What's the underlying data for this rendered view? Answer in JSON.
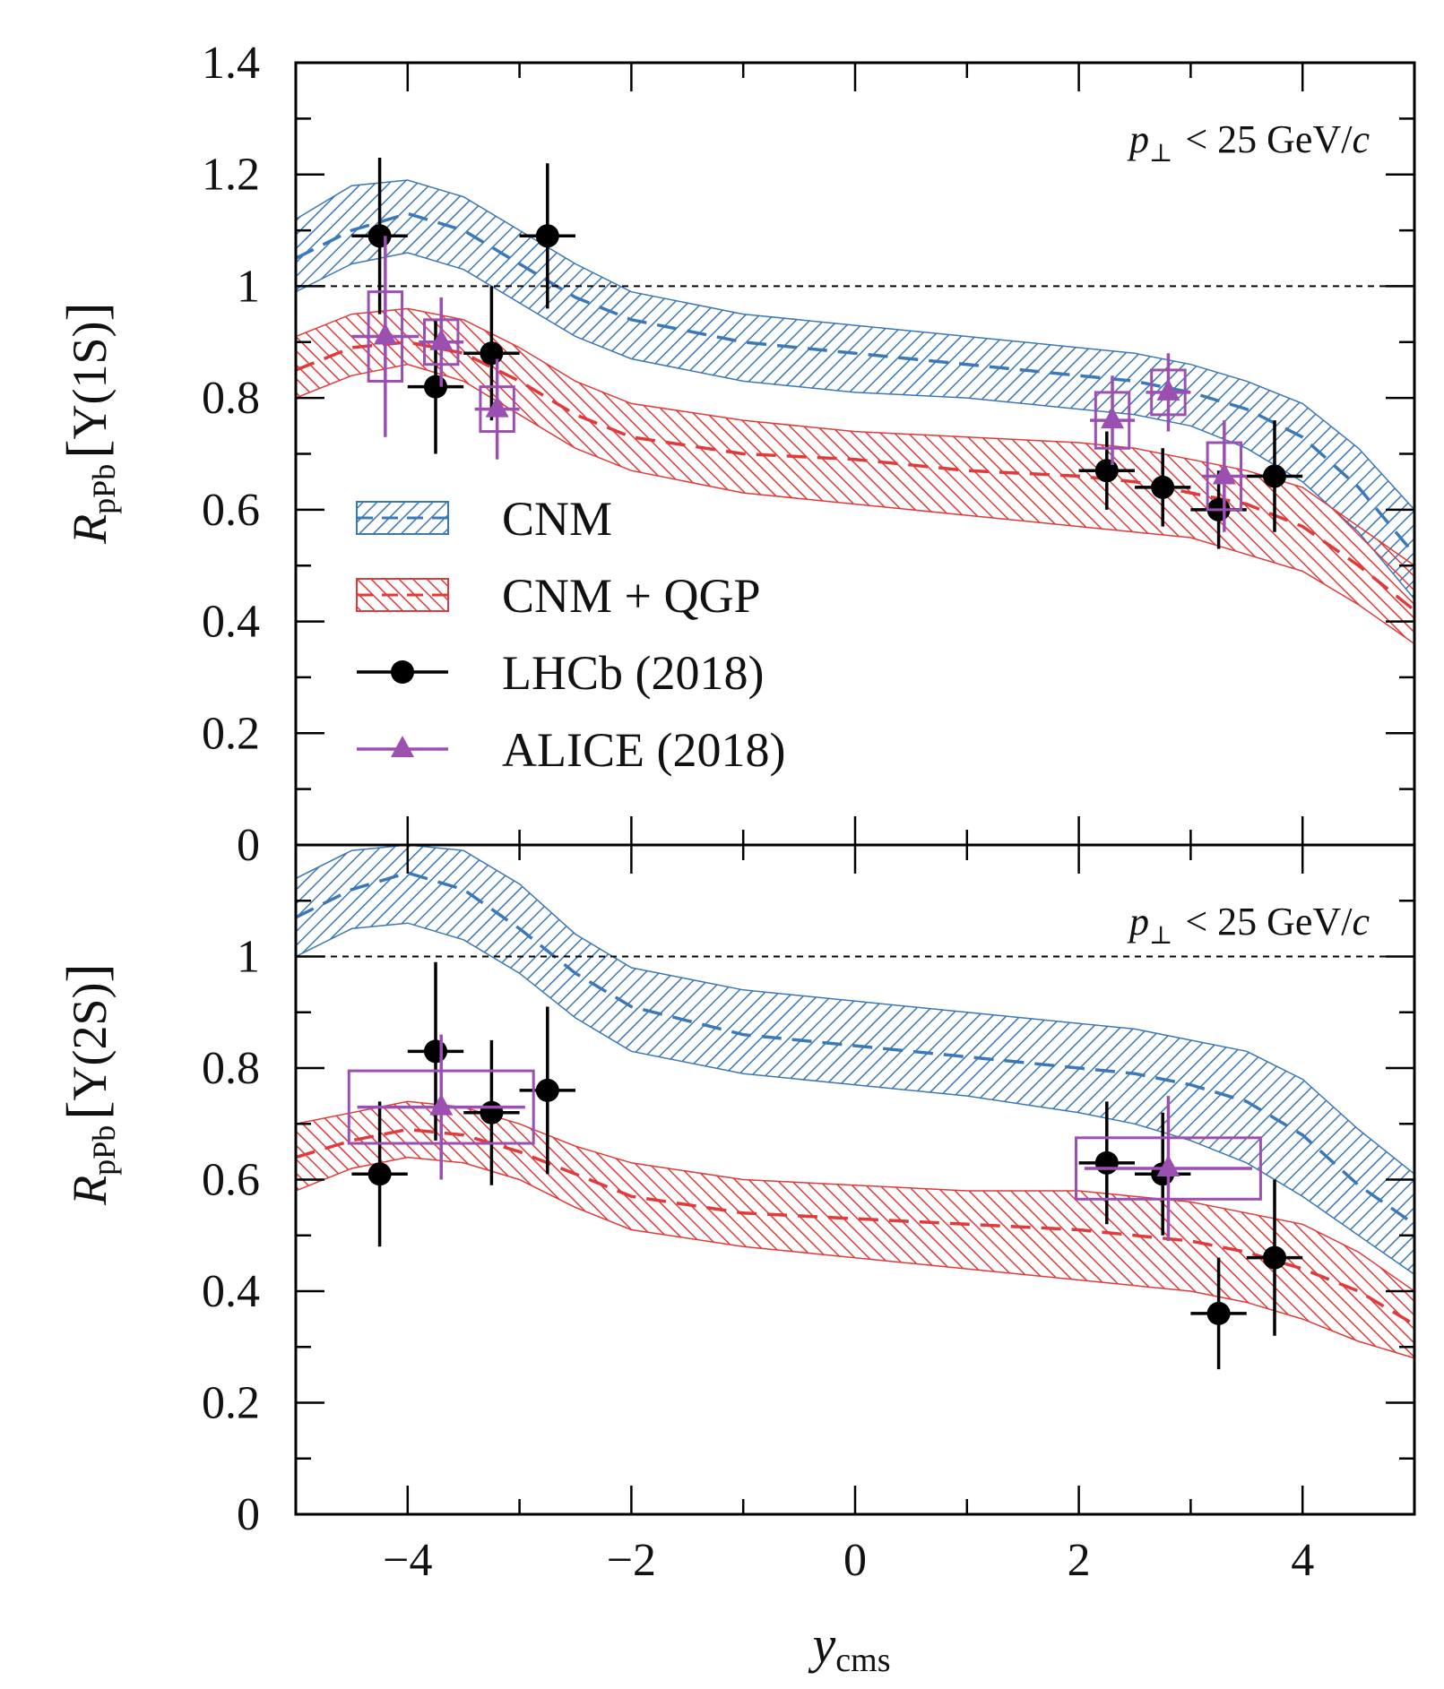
{
  "chart_data": [
    {
      "type": "line",
      "panel": "top",
      "ylabel_main": "R",
      "ylabel_sub": "pPb",
      "ylabel_state": "Υ(1S)",
      "annotation": {
        "p": "p",
        "perp": "⊥",
        "rest": "< 25 GeV/",
        "c": "c"
      },
      "xlim": [
        -5,
        5
      ],
      "ylim": [
        0,
        1.4
      ],
      "yticks": [
        0,
        0.2,
        0.4,
        0.6,
        0.8,
        1,
        1.2,
        1.4
      ],
      "ytick_labels": [
        "0",
        "0.2",
        "0.4",
        "0.6",
        "0.8",
        "1",
        "1.2",
        "1.4"
      ],
      "reference_line": 1,
      "series": [
        {
          "name": "CNM",
          "color": "#3a78b8",
          "x": [
            -5.0,
            -4.5,
            -4.0,
            -3.5,
            -3.0,
            -2.5,
            -2.0,
            -1.0,
            0.0,
            1.0,
            2.0,
            2.5,
            3.0,
            3.5,
            4.0,
            4.5,
            5.0
          ],
          "central": [
            1.05,
            1.1,
            1.13,
            1.1,
            1.04,
            0.98,
            0.94,
            0.9,
            0.88,
            0.86,
            0.84,
            0.83,
            0.81,
            0.78,
            0.73,
            0.64,
            0.52
          ],
          "lower": [
            0.99,
            1.04,
            1.06,
            1.03,
            0.97,
            0.91,
            0.87,
            0.83,
            0.81,
            0.8,
            0.78,
            0.77,
            0.75,
            0.71,
            0.65,
            0.56,
            0.44
          ],
          "upper": [
            1.12,
            1.18,
            1.19,
            1.16,
            1.1,
            1.04,
            0.99,
            0.95,
            0.93,
            0.91,
            0.89,
            0.88,
            0.86,
            0.83,
            0.79,
            0.71,
            0.6
          ]
        },
        {
          "name": "CNM + QGP",
          "color": "#e03a3a",
          "x": [
            -5.0,
            -4.5,
            -4.0,
            -3.5,
            -3.0,
            -2.5,
            -2.0,
            -1.0,
            0.0,
            1.0,
            2.0,
            2.5,
            3.0,
            3.5,
            4.0,
            4.5,
            5.0
          ],
          "central": [
            0.85,
            0.89,
            0.9,
            0.88,
            0.83,
            0.77,
            0.73,
            0.7,
            0.69,
            0.67,
            0.66,
            0.65,
            0.63,
            0.61,
            0.57,
            0.5,
            0.42
          ],
          "lower": [
            0.8,
            0.84,
            0.86,
            0.83,
            0.77,
            0.71,
            0.67,
            0.63,
            0.61,
            0.59,
            0.57,
            0.56,
            0.55,
            0.52,
            0.49,
            0.43,
            0.36
          ],
          "upper": [
            0.91,
            0.95,
            0.96,
            0.94,
            0.89,
            0.83,
            0.79,
            0.76,
            0.74,
            0.73,
            0.72,
            0.71,
            0.69,
            0.67,
            0.64,
            0.57,
            0.5
          ]
        }
      ],
      "points": [
        {
          "name": "LHCb (2018)",
          "color": "#000000",
          "marker": "circle",
          "x": [
            -4.25,
            -3.75,
            -3.25,
            -2.75,
            2.25,
            2.75,
            3.25,
            3.75
          ],
          "y": [
            1.09,
            0.82,
            0.88,
            1.09,
            0.67,
            0.64,
            0.6,
            0.66
          ],
          "xerr": [
            0.25,
            0.25,
            0.25,
            0.25,
            0.25,
            0.25,
            0.25,
            0.25
          ],
          "yerr": [
            0.14,
            0.12,
            0.12,
            0.13,
            0.07,
            0.07,
            0.07,
            0.1
          ]
        },
        {
          "name": "ALICE (2018)",
          "color": "#9b4fb0",
          "marker": "triangle",
          "x": [
            -4.2,
            -3.7,
            -3.2,
            2.3,
            2.8,
            3.3
          ],
          "y": [
            0.91,
            0.9,
            0.78,
            0.76,
            0.81,
            0.66
          ],
          "xerr": [
            0.3,
            0.2,
            0.2,
            0.2,
            0.2,
            0.2
          ],
          "yerr": [
            0.18,
            0.08,
            0.09,
            0.08,
            0.07,
            0.1
          ],
          "syst": [
            0.08,
            0.04,
            0.04,
            0.05,
            0.04,
            0.06
          ]
        }
      ],
      "legend": [
        {
          "label": "CNM",
          "kind": "band-hatch",
          "color": "#3a78b8",
          "dir": "right"
        },
        {
          "label": "CNM + QGP",
          "kind": "band-hatch",
          "color": "#e03a3a",
          "dir": "left"
        },
        {
          "label": "LHCb (2018)",
          "kind": "circle",
          "color": "#000000"
        },
        {
          "label": "ALICE (2018)",
          "kind": "triangle",
          "color": "#9b4fb0"
        }
      ],
      "legend_position": "left"
    },
    {
      "type": "line",
      "panel": "bottom",
      "ylabel_main": "R",
      "ylabel_sub": "pPb",
      "ylabel_state": "Υ(2S)",
      "xlabel_main": "y",
      "xlabel_sub": "cms",
      "annotation": {
        "p": "p",
        "perp": "⊥",
        "rest": "< 25 GeV/",
        "c": "c"
      },
      "xlim": [
        -5,
        5
      ],
      "ylim": [
        0,
        1.2
      ],
      "xticks": [
        -4,
        -2,
        0,
        2,
        4
      ],
      "xtick_labels": [
        "−4",
        "−2",
        "0",
        "2",
        "4"
      ],
      "yticks": [
        0,
        0.2,
        0.4,
        0.6,
        0.8,
        1
      ],
      "ytick_labels": [
        "0",
        "0.2",
        "0.4",
        "0.6",
        "0.8",
        "1"
      ],
      "reference_line": 1,
      "series": [
        {
          "name": "CNM",
          "color": "#3a78b8",
          "x": [
            -5.0,
            -4.5,
            -4.0,
            -3.5,
            -3.0,
            -2.5,
            -2.0,
            -1.0,
            0.0,
            1.0,
            2.0,
            2.5,
            3.0,
            3.5,
            4.0,
            4.5,
            5.0
          ],
          "central": [
            1.07,
            1.12,
            1.15,
            1.12,
            1.05,
            0.97,
            0.91,
            0.86,
            0.84,
            0.82,
            0.8,
            0.79,
            0.77,
            0.74,
            0.68,
            0.59,
            0.52
          ],
          "lower": [
            1.0,
            1.05,
            1.06,
            1.03,
            0.97,
            0.89,
            0.83,
            0.79,
            0.77,
            0.75,
            0.72,
            0.7,
            0.67,
            0.63,
            0.57,
            0.5,
            0.43
          ],
          "upper": [
            1.14,
            1.19,
            1.2,
            1.19,
            1.13,
            1.04,
            0.98,
            0.94,
            0.92,
            0.9,
            0.88,
            0.87,
            0.85,
            0.83,
            0.78,
            0.69,
            0.61
          ]
        },
        {
          "name": "CNM + QGP",
          "color": "#e03a3a",
          "x": [
            -5.0,
            -4.5,
            -4.0,
            -3.5,
            -3.0,
            -2.5,
            -2.0,
            -1.0,
            0.0,
            1.0,
            2.0,
            2.5,
            3.0,
            3.5,
            4.0,
            4.5,
            5.0
          ],
          "central": [
            0.64,
            0.67,
            0.69,
            0.68,
            0.65,
            0.61,
            0.57,
            0.54,
            0.53,
            0.52,
            0.51,
            0.5,
            0.49,
            0.47,
            0.44,
            0.4,
            0.34
          ],
          "lower": [
            0.58,
            0.62,
            0.64,
            0.63,
            0.6,
            0.55,
            0.51,
            0.48,
            0.46,
            0.44,
            0.42,
            0.41,
            0.4,
            0.38,
            0.35,
            0.31,
            0.28
          ],
          "upper": [
            0.7,
            0.72,
            0.74,
            0.73,
            0.7,
            0.66,
            0.63,
            0.6,
            0.59,
            0.58,
            0.58,
            0.57,
            0.56,
            0.54,
            0.52,
            0.47,
            0.4
          ]
        }
      ],
      "points": [
        {
          "name": "LHCb (2018)",
          "color": "#000000",
          "marker": "circle",
          "x": [
            -4.25,
            -3.75,
            -3.25,
            -2.75,
            2.25,
            2.75,
            3.25,
            3.75
          ],
          "y": [
            0.61,
            0.83,
            0.72,
            0.76,
            0.63,
            0.61,
            0.36,
            0.46
          ],
          "xerr": [
            0.25,
            0.25,
            0.25,
            0.25,
            0.25,
            0.25,
            0.25,
            0.25
          ],
          "yerr": [
            0.13,
            0.16,
            0.13,
            0.15,
            0.11,
            0.11,
            0.1,
            0.14
          ]
        },
        {
          "name": "ALICE (2018)",
          "color": "#9b4fb0",
          "marker": "triangle",
          "x": [
            -3.7,
            2.8
          ],
          "y": [
            0.73,
            0.62
          ],
          "xerr": [
            0.75,
            0.75
          ],
          "yerr": [
            0.13,
            0.13
          ],
          "syst": [
            0.065,
            0.055
          ]
        }
      ]
    }
  ]
}
